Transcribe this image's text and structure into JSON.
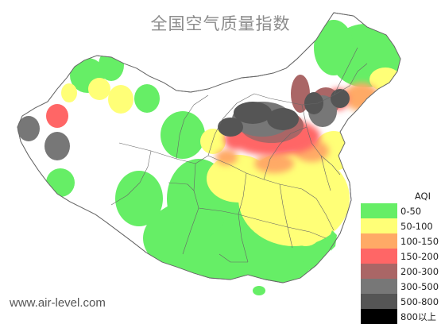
{
  "title": "全国空气质量指数",
  "watermark": "www.air-level.com",
  "legend": {
    "title": "AQI",
    "items": [
      {
        "label": "0-50",
        "color": "#66ee66"
      },
      {
        "label": "50-100",
        "color": "#ffff77"
      },
      {
        "label": "100-150",
        "color": "#ffaa66"
      },
      {
        "label": "150-200",
        "color": "#ff6666"
      },
      {
        "label": "200-300",
        "color": "#aa6666"
      },
      {
        "label": "300-500",
        "color": "#777777"
      },
      {
        "label": "500-800",
        "color": "#555555"
      },
      {
        "label": "800以上",
        "color": "#000000"
      }
    ]
  },
  "colors": {
    "land": "#ffffff",
    "border": "#666666",
    "good": "#66ee66",
    "moderate": "#ffff77",
    "sensitive": "#ffaa66",
    "unhealthy": "#ff6666",
    "very_unhealthy": "#aa6666",
    "hazardous": "#777777",
    "severe": "#555555"
  }
}
